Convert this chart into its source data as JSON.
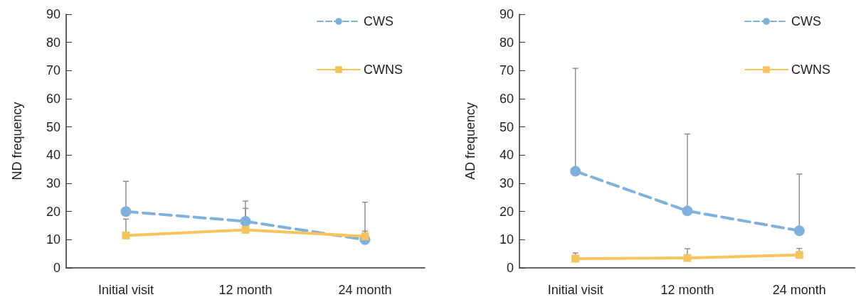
{
  "chart_data": [
    {
      "type": "line",
      "ylabel": "ND frequency",
      "categories": [
        "Initial visit",
        "12 month",
        "24 month"
      ],
      "ylim": [
        0,
        90
      ],
      "yticks": [
        0,
        10,
        20,
        30,
        40,
        50,
        60,
        70,
        80,
        90
      ],
      "grid": false,
      "legend": "top right",
      "series": [
        {
          "name": "CWS",
          "color": "#7eb1dc",
          "marker": "circle",
          "line_style": "dashed",
          "values": [
            20,
            16.5,
            10
          ],
          "errors": [
            [
              20,
              30.7
            ],
            [
              16.5,
              23.7
            ],
            [
              10,
              23.3
            ]
          ]
        },
        {
          "name": "CWNS",
          "color": "#f5c45c",
          "marker": "square",
          "line_style": "solid",
          "values": [
            11.5,
            13.5,
            11.2
          ],
          "errors": [
            [
              11.5,
              17.3
            ],
            [
              13.5,
              21.1
            ],
            [
              11.2,
              13
            ]
          ]
        }
      ]
    },
    {
      "type": "line",
      "ylabel": "AD frequency",
      "categories": [
        "Initial visit",
        "12 month",
        "24 month"
      ],
      "ylim": [
        0,
        90
      ],
      "yticks": [
        0,
        10,
        20,
        30,
        40,
        50,
        60,
        70,
        80,
        90
      ],
      "grid": false,
      "legend": "top right",
      "series": [
        {
          "name": "CWS",
          "color": "#7eb1dc",
          "marker": "circle",
          "line_style": "dashed",
          "values": [
            34.3,
            20.2,
            13.2
          ],
          "errors": [
            [
              34.3,
              70.8
            ],
            [
              20.2,
              47.5
            ],
            [
              13.2,
              33.3
            ]
          ]
        },
        {
          "name": "CWNS",
          "color": "#f5c45c",
          "marker": "square",
          "line_style": "solid",
          "values": [
            3.3,
            3.5,
            4.6
          ],
          "errors": [
            [
              3.3,
              5.3
            ],
            [
              3.5,
              6.8
            ],
            [
              4.6,
              6.9
            ]
          ]
        }
      ]
    }
  ]
}
